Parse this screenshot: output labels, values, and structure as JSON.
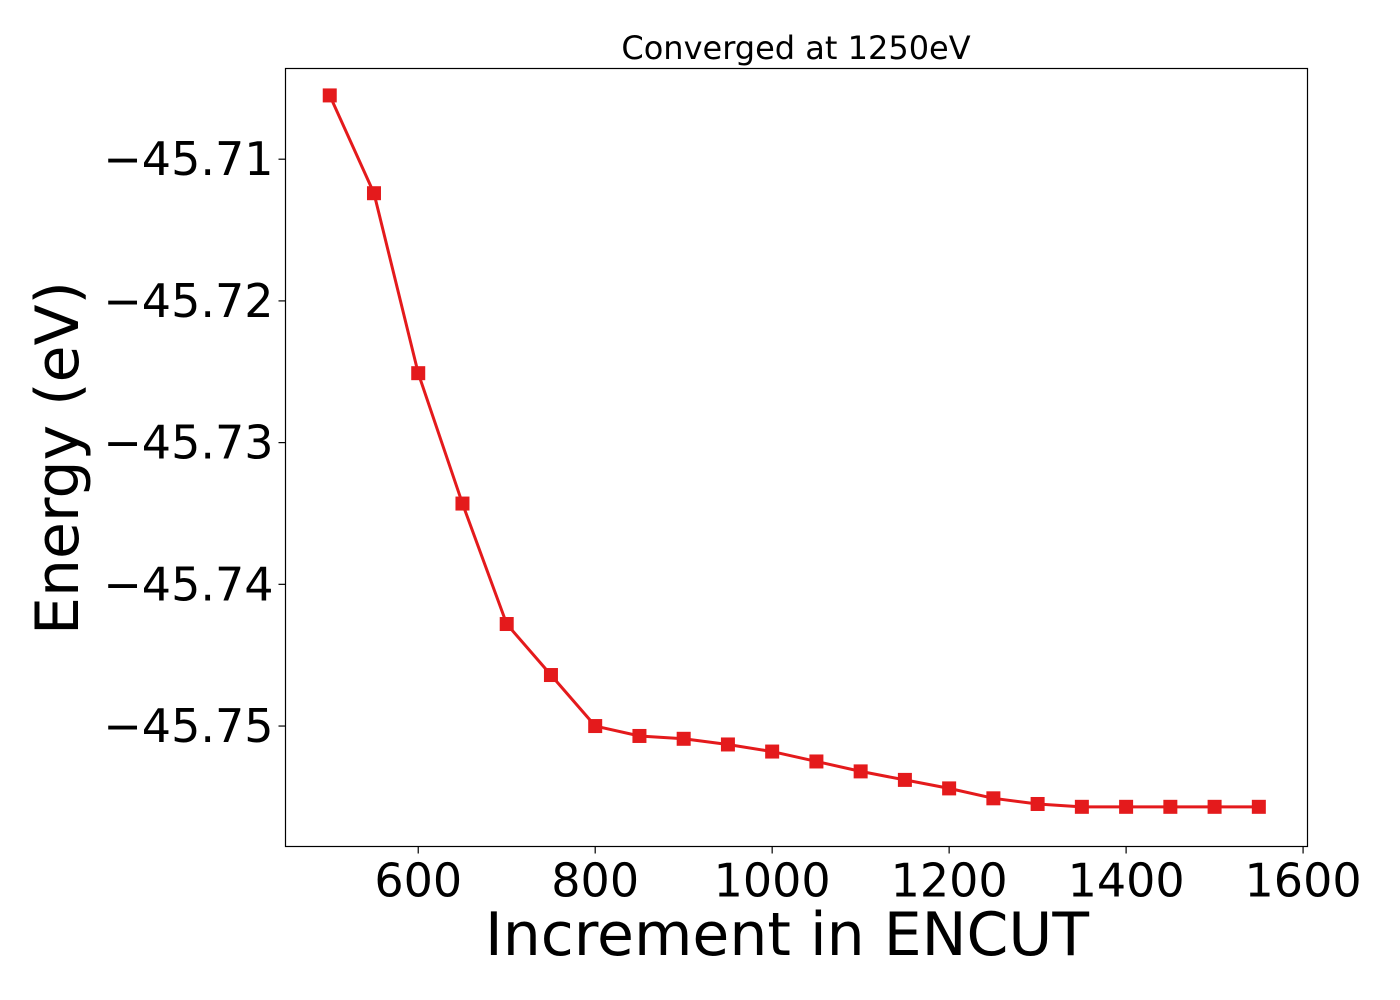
{
  "chart_data": {
    "type": "line",
    "title": "Converged at 1250eV",
    "xlabel": "Increment in ENCUT",
    "ylabel": "Energy (eV)",
    "xlim": [
      450,
      1605
    ],
    "ylim": [
      -45.7585,
      -45.7036
    ],
    "xticks": [
      600,
      800,
      1000,
      1200,
      1400,
      1600
    ],
    "xtick_labels": [
      "600",
      "800",
      "1000",
      "1200",
      "1400",
      "1600"
    ],
    "yticks": [
      -45.71,
      -45.72,
      -45.73,
      -45.74,
      -45.75
    ],
    "ytick_labels": [
      "−45.71",
      "−45.72",
      "−45.73",
      "−45.74",
      "−45.75"
    ],
    "grid": false,
    "series": [
      {
        "color": "#e41a1c",
        "marker": "square",
        "x": [
          500,
          550,
          600,
          650,
          700,
          750,
          800,
          850,
          900,
          950,
          1000,
          1050,
          1100,
          1150,
          1200,
          1250,
          1300,
          1350,
          1400,
          1450,
          1500,
          1550
        ],
        "y": [
          -45.7055,
          -45.7124,
          -45.7251,
          -45.7343,
          -45.7428,
          -45.7464,
          -45.75,
          -45.7507,
          -45.7509,
          -45.7513,
          -45.7518,
          -45.7525,
          -45.7532,
          -45.7538,
          -45.7544,
          -45.7551,
          -45.7555,
          -45.7557,
          -45.7557,
          -45.7557,
          -45.7557,
          -45.7557
        ]
      }
    ]
  }
}
